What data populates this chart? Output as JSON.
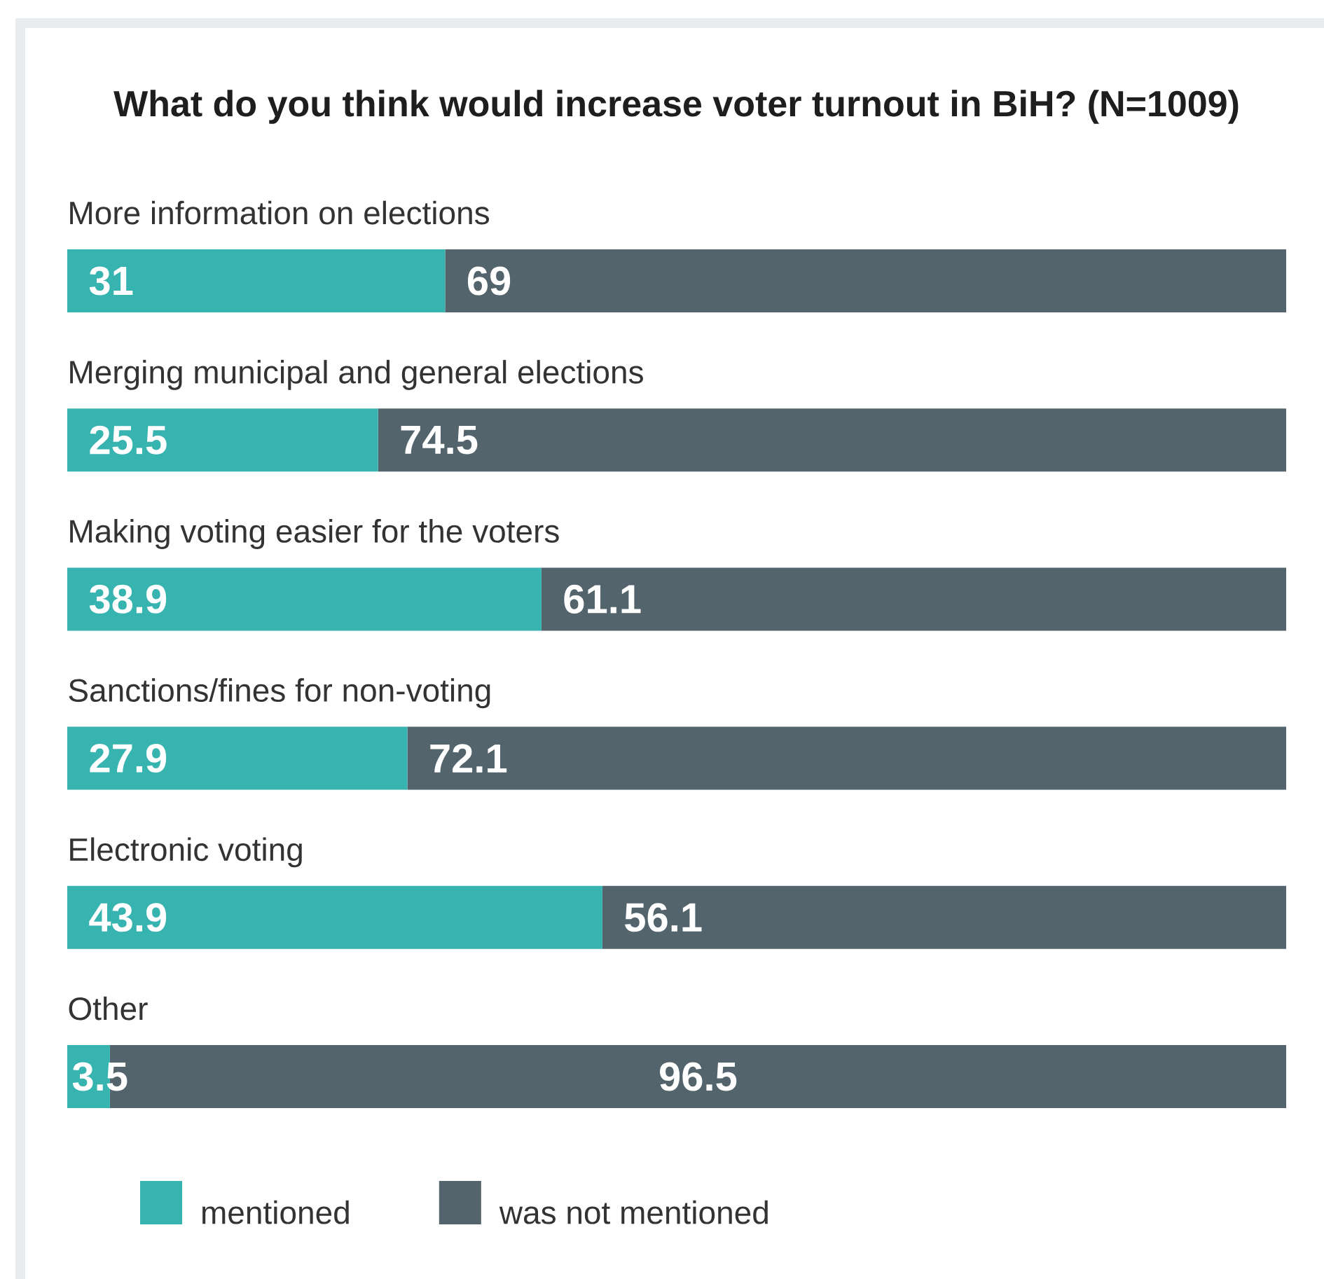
{
  "chart_data": {
    "type": "bar",
    "orientation": "horizontal",
    "stacked": true,
    "title": "What do you think would increase voter turnout in BiH? (N=1009)",
    "categories": [
      "More information on elections",
      "Merging municipal and general elections",
      "Making voting easier for the voters",
      "Sanctions/fines for non-voting",
      "Electronic voting",
      "Other"
    ],
    "series": [
      {
        "name": "mentioned",
        "color": "#37b3b0",
        "values": [
          31,
          25.5,
          38.9,
          27.9,
          43.9,
          3.5
        ]
      },
      {
        "name": "was not mentioned",
        "color": "#53646d",
        "values": [
          69,
          74.5,
          61.1,
          72.1,
          56.1,
          96.5
        ]
      }
    ],
    "data_labels": true,
    "legend": "bottom left",
    "tick_labels": "y"
  }
}
